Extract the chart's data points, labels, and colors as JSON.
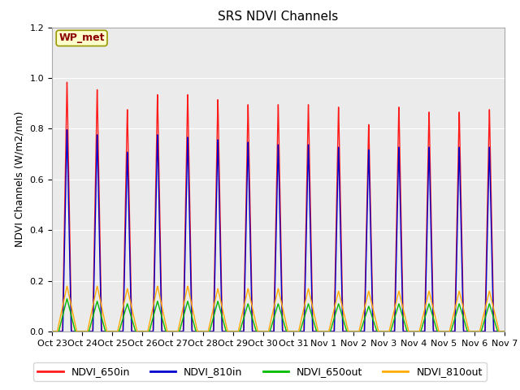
{
  "title": "SRS NDVI Channels",
  "ylabel": "NDVI Channels (W/m2/nm)",
  "xlabel": "",
  "annotation": "WP_met",
  "ylim": [
    0,
    1.2
  ],
  "yticks": [
    0.0,
    0.2,
    0.4,
    0.6,
    0.8,
    1.0,
    1.2
  ],
  "background_color": "#ebebeb",
  "figure_color": "#ffffff",
  "lines": {
    "NDVI_650in": {
      "color": "#ff1a1a",
      "lw": 1.0
    },
    "NDVI_810in": {
      "color": "#0000cc",
      "lw": 1.0
    },
    "NDVI_650out": {
      "color": "#00bb00",
      "lw": 1.0
    },
    "NDVI_810out": {
      "color": "#ffaa00",
      "lw": 1.0
    }
  },
  "day_peaks_650in": [
    1.0,
    0.97,
    0.89,
    0.95,
    0.95,
    0.93,
    0.91,
    0.91,
    0.91,
    0.9,
    0.83,
    0.9,
    0.88,
    0.88,
    0.89
  ],
  "day_peaks_810in": [
    0.81,
    0.79,
    0.72,
    0.79,
    0.78,
    0.77,
    0.76,
    0.75,
    0.75,
    0.74,
    0.73,
    0.74,
    0.74,
    0.74,
    0.74
  ],
  "day_peaks_650out": [
    0.13,
    0.12,
    0.11,
    0.12,
    0.12,
    0.12,
    0.11,
    0.11,
    0.11,
    0.11,
    0.1,
    0.11,
    0.11,
    0.11,
    0.11
  ],
  "day_peaks_810out": [
    0.18,
    0.18,
    0.17,
    0.18,
    0.18,
    0.17,
    0.17,
    0.17,
    0.17,
    0.16,
    0.16,
    0.16,
    0.16,
    0.16,
    0.16
  ],
  "num_days": 15,
  "points_per_day": 200,
  "xtick_labels": [
    "Oct 23",
    "Oct 24",
    "Oct 25",
    "Oct 26",
    "Oct 27",
    "Oct 28",
    "Oct 29",
    "Oct 30",
    "Oct 31",
    "Nov 1",
    "Nov 2",
    "Nov 3",
    "Nov 4",
    "Nov 5",
    "Nov 6",
    "Nov 7"
  ],
  "title_fontsize": 11,
  "label_fontsize": 9,
  "tick_fontsize": 8
}
